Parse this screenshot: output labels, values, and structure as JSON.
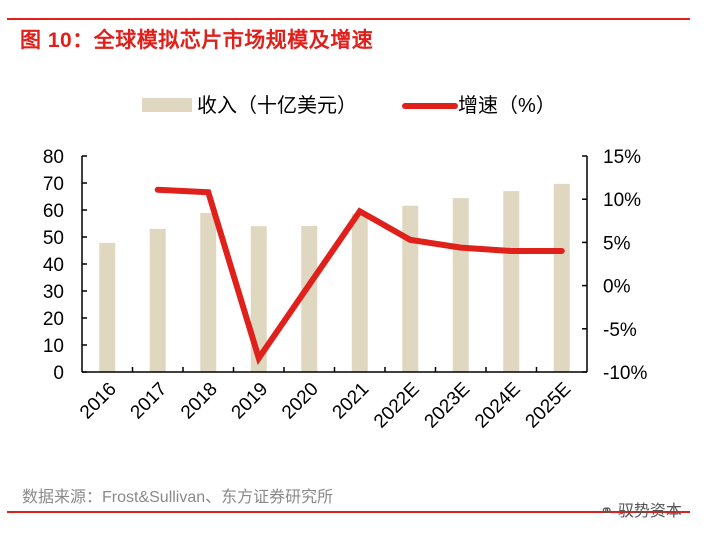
{
  "title": "图 10：全球模拟芯片市场规模及增速",
  "source": "数据来源：Frost&Sullivan、东方证券研究所",
  "watermark": "驭势资本",
  "colors": {
    "bar": "#e0d7c1",
    "line": "#e0201b",
    "title": "#e0201b"
  },
  "chart_data": {
    "type": "bar+line",
    "categories": [
      "2016",
      "2017",
      "2018",
      "2019",
      "2020",
      "2021",
      "2022E",
      "2023E",
      "2024E",
      "2025E"
    ],
    "series": [
      {
        "name": "收入（十亿美元）",
        "type": "bar",
        "axis": "left",
        "values": [
          47.8,
          53.0,
          58.9,
          54.0,
          54.1,
          58.6,
          61.6,
          64.4,
          67.0,
          69.7
        ]
      },
      {
        "name": "增速（%）",
        "type": "line",
        "axis": "right",
        "values": [
          null,
          11.1,
          10.8,
          -8.4,
          0.1,
          8.6,
          5.3,
          4.4,
          4.0,
          4.0
        ]
      }
    ],
    "left_axis": {
      "ylim": [
        0,
        80
      ],
      "ticks": [
        "0",
        "10",
        "20",
        "30",
        "40",
        "50",
        "60",
        "70",
        "80"
      ]
    },
    "right_axis": {
      "ylim": [
        -10,
        15
      ],
      "ticks": [
        "-10%",
        "-5%",
        "0%",
        "5%",
        "10%",
        "15%"
      ]
    },
    "legend_position": "top",
    "grid": false
  }
}
